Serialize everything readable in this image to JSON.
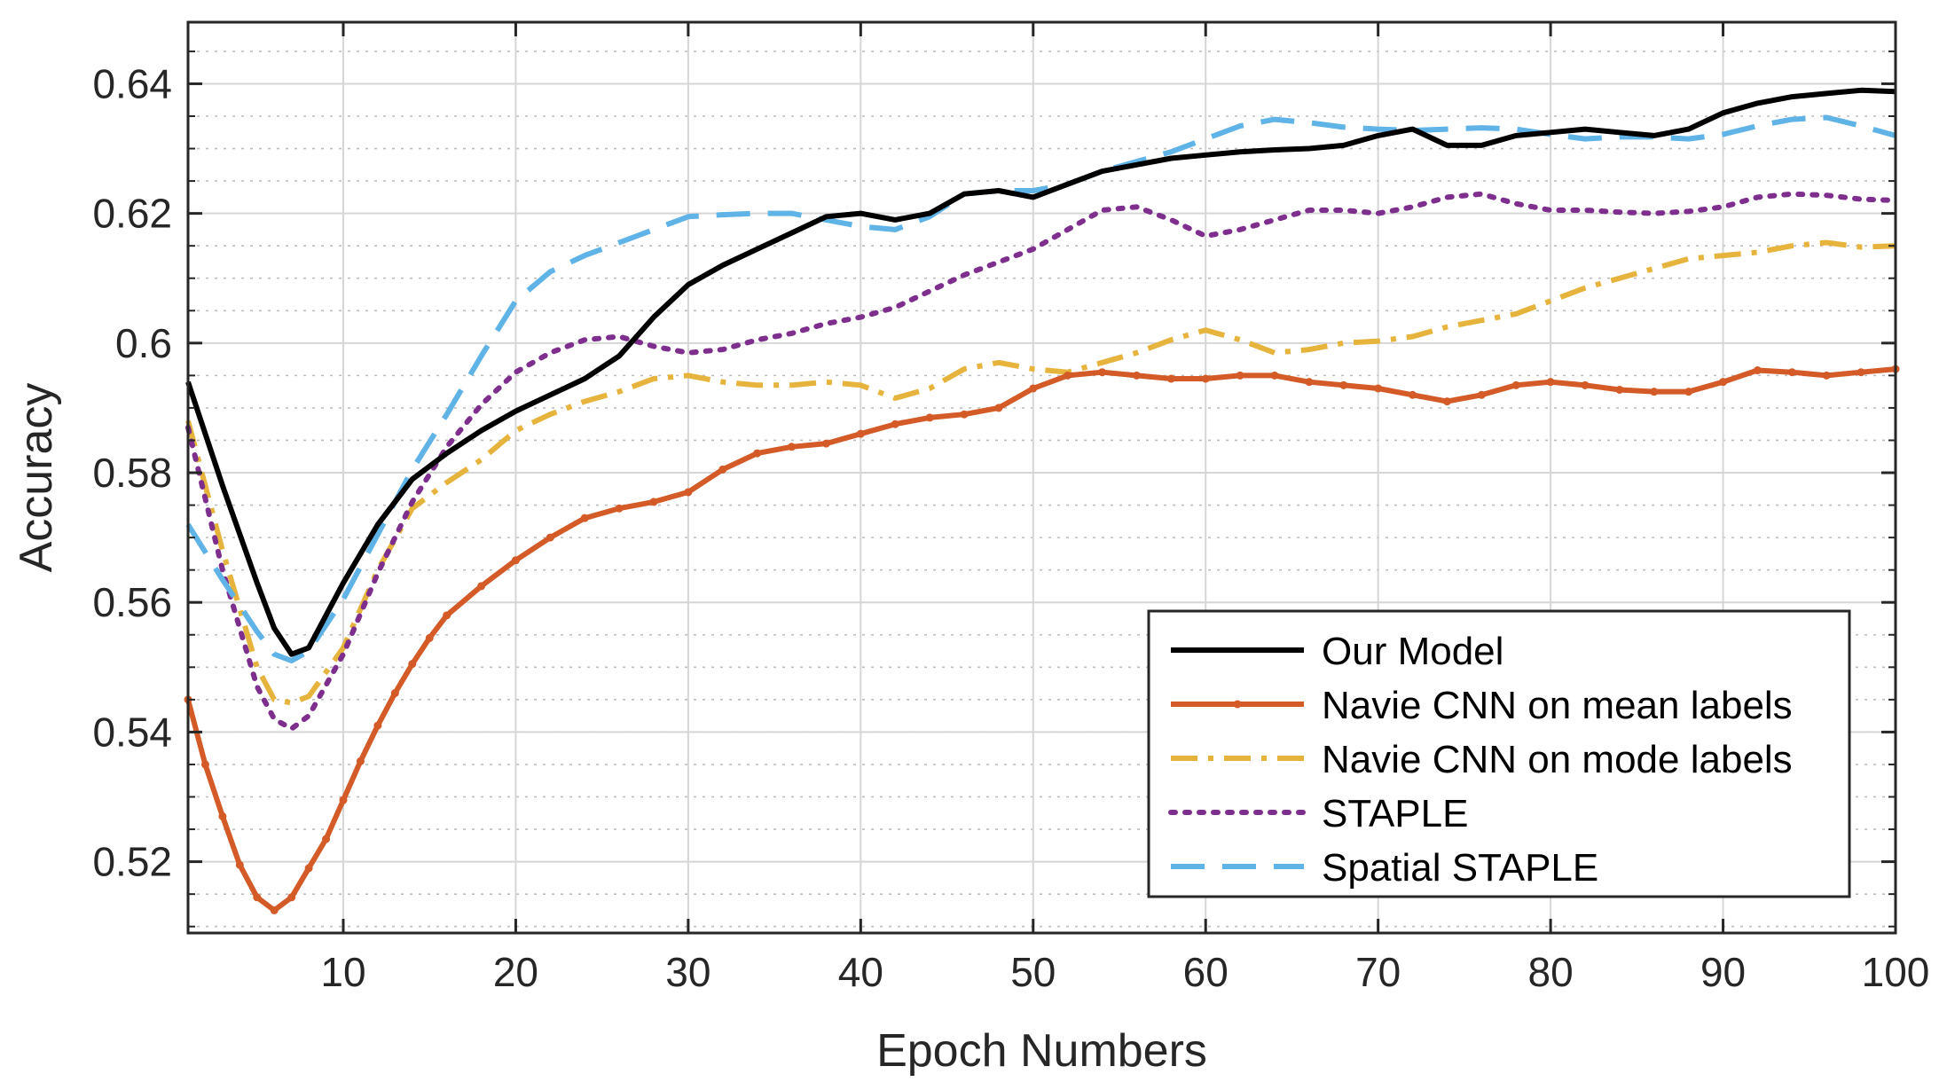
{
  "chart_data": {
    "type": "line",
    "xlabel": "Epoch Numbers",
    "ylabel": "Accuracy",
    "xlim": [
      1,
      100
    ],
    "ylim": [
      0.509,
      0.6495
    ],
    "xticks": [
      10,
      20,
      30,
      40,
      50,
      60,
      70,
      80,
      90,
      100
    ],
    "xtick_labels": [
      "10",
      "20",
      "30",
      "40",
      "50",
      "60",
      "70",
      "80",
      "90",
      "100"
    ],
    "yticks": [
      0.52,
      0.54,
      0.56,
      0.58,
      0.6,
      0.62,
      0.64
    ],
    "ytick_labels": [
      "0.52",
      "0.54",
      "0.56",
      "0.58",
      "0.6",
      "0.62",
      "0.64"
    ],
    "grid": true,
    "minor_grid": true,
    "legend_position": "bottom-right",
    "series": [
      {
        "name": "Our Model",
        "color": "#000000",
        "style": "solid",
        "x": [
          1,
          3,
          5,
          6,
          7,
          8,
          10,
          12,
          14,
          16,
          18,
          20,
          22,
          24,
          26,
          28,
          30,
          32,
          34,
          36,
          38,
          40,
          42,
          44,
          46,
          48,
          50,
          52,
          54,
          56,
          58,
          60,
          62,
          64,
          66,
          68,
          70,
          72,
          74,
          76,
          78,
          80,
          82,
          84,
          86,
          88,
          90,
          92,
          94,
          96,
          98,
          100
        ],
        "y": [
          0.594,
          0.578,
          0.563,
          0.556,
          0.552,
          0.553,
          0.563,
          0.572,
          0.579,
          0.583,
          0.5865,
          0.5895,
          0.592,
          0.5945,
          0.598,
          0.604,
          0.609,
          0.612,
          0.6145,
          0.617,
          0.6195,
          0.62,
          0.619,
          0.62,
          0.623,
          0.6235,
          0.6225,
          0.6245,
          0.6265,
          0.6275,
          0.6285,
          0.629,
          0.6295,
          0.6298,
          0.63,
          0.6305,
          0.632,
          0.633,
          0.6305,
          0.6305,
          0.632,
          0.6325,
          0.633,
          0.6325,
          0.632,
          0.633,
          0.6355,
          0.637,
          0.638,
          0.6385,
          0.639,
          0.6388
        ]
      },
      {
        "name": "Navie CNN on mean labels",
        "color": "#d45b27",
        "style": "solid-dot",
        "x": [
          1,
          2,
          3,
          4,
          5,
          6,
          7,
          8,
          9,
          10,
          11,
          12,
          13,
          14,
          15,
          16,
          18,
          20,
          22,
          24,
          26,
          28,
          30,
          32,
          34,
          36,
          38,
          40,
          42,
          44,
          46,
          48,
          50,
          52,
          54,
          56,
          58,
          60,
          62,
          64,
          66,
          68,
          70,
          72,
          74,
          76,
          78,
          80,
          82,
          84,
          86,
          88,
          90,
          92,
          94,
          96,
          98,
          100
        ],
        "y": [
          0.545,
          0.535,
          0.527,
          0.5195,
          0.5145,
          0.5125,
          0.5145,
          0.519,
          0.5235,
          0.5295,
          0.5355,
          0.541,
          0.546,
          0.5505,
          0.5545,
          0.558,
          0.5625,
          0.5665,
          0.57,
          0.573,
          0.5745,
          0.5755,
          0.577,
          0.5805,
          0.583,
          0.584,
          0.5845,
          0.586,
          0.5875,
          0.5885,
          0.589,
          0.59,
          0.593,
          0.595,
          0.5955,
          0.595,
          0.5945,
          0.5945,
          0.595,
          0.595,
          0.594,
          0.5935,
          0.593,
          0.592,
          0.591,
          0.592,
          0.5935,
          0.594,
          0.5935,
          0.5928,
          0.5925,
          0.5925,
          0.594,
          0.5958,
          0.5955,
          0.595,
          0.5955,
          0.596
        ]
      },
      {
        "name": "Navie CNN on mode labels",
        "color": "#e6b43c",
        "style": "dashdot",
        "x": [
          1,
          3,
          5,
          6,
          7,
          8,
          10,
          12,
          14,
          16,
          18,
          20,
          22,
          24,
          26,
          28,
          30,
          32,
          34,
          36,
          38,
          40,
          42,
          44,
          46,
          48,
          50,
          52,
          54,
          56,
          58,
          60,
          62,
          64,
          66,
          68,
          70,
          72,
          74,
          76,
          78,
          80,
          82,
          84,
          86,
          88,
          90,
          92,
          94,
          96,
          98,
          100
        ],
        "y": [
          0.588,
          0.568,
          0.55,
          0.545,
          0.5445,
          0.5455,
          0.553,
          0.565,
          0.5745,
          0.5785,
          0.582,
          0.5865,
          0.589,
          0.591,
          0.5925,
          0.5945,
          0.595,
          0.594,
          0.5935,
          0.5935,
          0.594,
          0.5935,
          0.5915,
          0.593,
          0.596,
          0.597,
          0.596,
          0.5955,
          0.597,
          0.5985,
          0.6005,
          0.602,
          0.6005,
          0.5985,
          0.599,
          0.6,
          0.6003,
          0.601,
          0.6025,
          0.6035,
          0.6045,
          0.6065,
          0.6085,
          0.61,
          0.6115,
          0.613,
          0.6135,
          0.614,
          0.615,
          0.6155,
          0.6148,
          0.615
        ]
      },
      {
        "name": "STAPLE",
        "color": "#7e2f8e",
        "style": "dotted",
        "x": [
          1,
          3,
          5,
          6,
          7,
          8,
          10,
          12,
          14,
          16,
          18,
          20,
          22,
          24,
          26,
          28,
          30,
          32,
          34,
          36,
          38,
          40,
          42,
          44,
          46,
          48,
          50,
          52,
          54,
          56,
          58,
          60,
          62,
          64,
          66,
          68,
          70,
          72,
          74,
          76,
          78,
          80,
          82,
          84,
          86,
          88,
          90,
          92,
          94,
          96,
          98,
          100
        ],
        "y": [
          0.587,
          0.565,
          0.547,
          0.542,
          0.5405,
          0.5425,
          0.552,
          0.5645,
          0.5755,
          0.584,
          0.5905,
          0.5955,
          0.5985,
          0.6005,
          0.601,
          0.5995,
          0.5985,
          0.599,
          0.6005,
          0.6015,
          0.603,
          0.604,
          0.6055,
          0.608,
          0.6105,
          0.6125,
          0.6145,
          0.6175,
          0.6205,
          0.621,
          0.619,
          0.6165,
          0.6175,
          0.619,
          0.6205,
          0.6205,
          0.62,
          0.621,
          0.6225,
          0.623,
          0.6215,
          0.6205,
          0.6205,
          0.6202,
          0.62,
          0.6203,
          0.621,
          0.6225,
          0.623,
          0.6228,
          0.6222,
          0.622
        ]
      },
      {
        "name": "Spatial STAPLE",
        "color": "#5fb3e6",
        "style": "dashed",
        "x": [
          1,
          3,
          5,
          6,
          7,
          8,
          10,
          12,
          14,
          16,
          18,
          20,
          22,
          24,
          26,
          28,
          30,
          32,
          34,
          36,
          38,
          40,
          42,
          44,
          46,
          48,
          50,
          52,
          54,
          56,
          58,
          60,
          62,
          64,
          66,
          68,
          70,
          72,
          74,
          76,
          78,
          80,
          82,
          84,
          86,
          88,
          90,
          92,
          94,
          96,
          98,
          100
        ],
        "y": [
          0.572,
          0.5635,
          0.5555,
          0.552,
          0.551,
          0.5525,
          0.5605,
          0.5705,
          0.5805,
          0.589,
          0.598,
          0.6065,
          0.611,
          0.6135,
          0.6155,
          0.6175,
          0.6195,
          0.6198,
          0.62,
          0.62,
          0.619,
          0.618,
          0.6175,
          0.6195,
          0.623,
          0.6235,
          0.6235,
          0.6245,
          0.6265,
          0.628,
          0.6295,
          0.6315,
          0.6335,
          0.6345,
          0.634,
          0.6333,
          0.633,
          0.6328,
          0.633,
          0.6332,
          0.633,
          0.6322,
          0.6315,
          0.6318,
          0.6318,
          0.6315,
          0.6322,
          0.6335,
          0.6345,
          0.6348,
          0.6335,
          0.632
        ]
      }
    ]
  }
}
